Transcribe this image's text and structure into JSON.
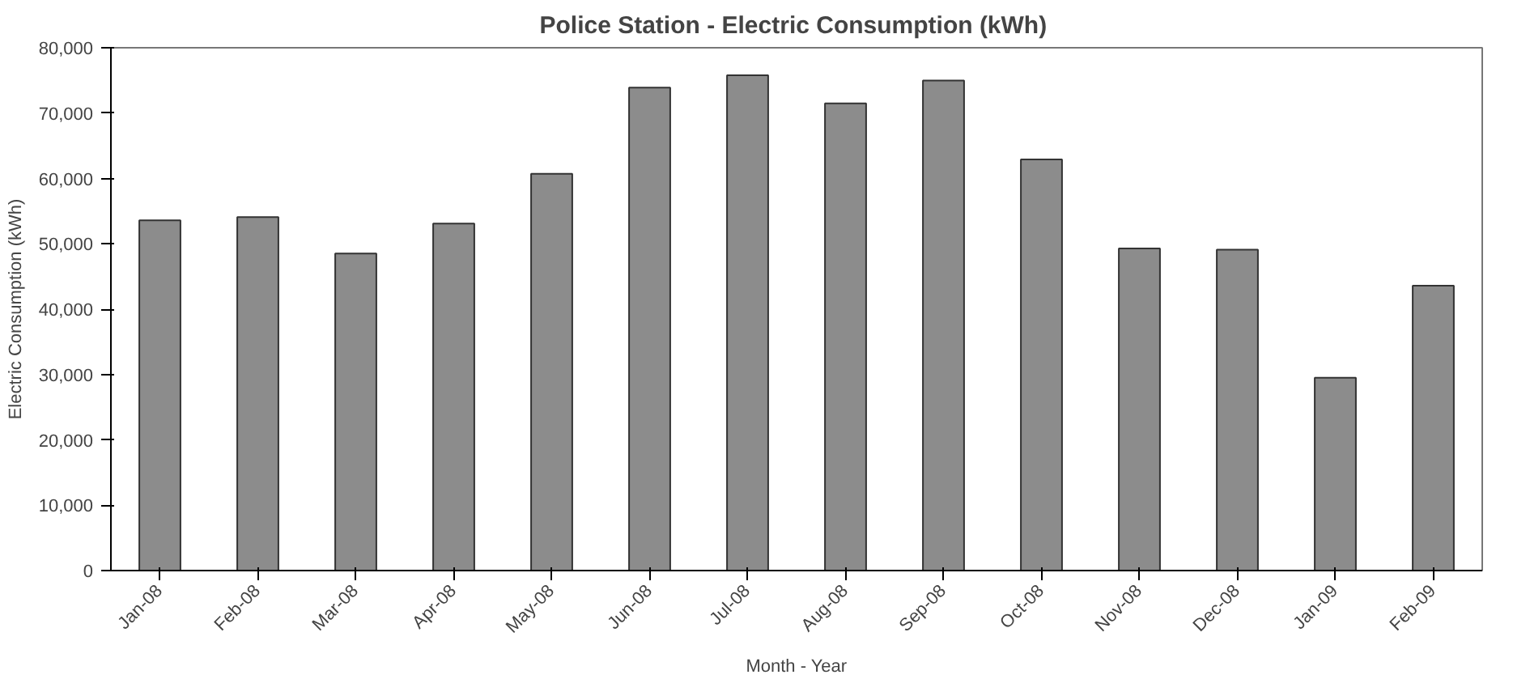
{
  "chart_data": {
    "type": "bar",
    "title": "Police Station - Electric Consumption  (kWh)",
    "xlabel": "Month - Year",
    "ylabel": "Electric Consumption (kWh)",
    "categories": [
      "Jan-08",
      "Feb-08",
      "Mar-08",
      "Apr-08",
      "May-08",
      "Jun-08",
      "Jul-08",
      "Aug-08",
      "Sep-08",
      "Oct-08",
      "Nov-08",
      "Dec-08",
      "Jan-09",
      "Feb-09"
    ],
    "values": [
      53600,
      54100,
      48500,
      53100,
      60700,
      73900,
      75800,
      71500,
      75000,
      62900,
      49300,
      49100,
      29500,
      43600
    ],
    "color": "#8c8c8c",
    "ylim": [
      0,
      80000
    ],
    "yticks": [
      0,
      {
        "value": 10000,
        "label": "10,000"
      },
      {
        "value": 20000,
        "label": "20,000"
      },
      {
        "value": 30000,
        "label": "30,000"
      },
      {
        "value": 40000,
        "label": "40,000"
      },
      {
        "value": 50000,
        "label": "50,000"
      },
      {
        "value": 60000,
        "label": "60,000"
      },
      {
        "value": 70000,
        "label": "70,000"
      },
      {
        "value": 80000,
        "label": "80,000"
      }
    ],
    "grid": false
  }
}
